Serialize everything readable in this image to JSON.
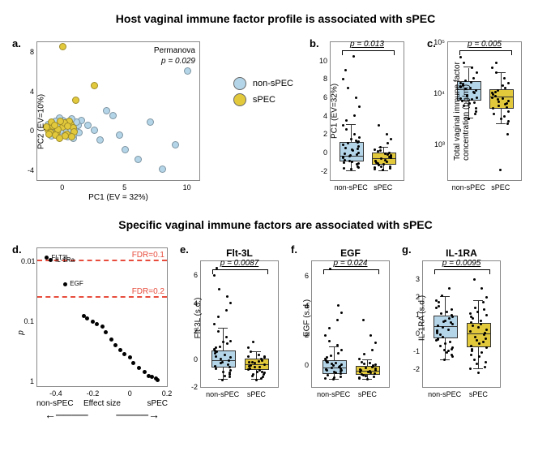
{
  "title1": "Host vaginal immune factor profile is associated with sPEC",
  "title2": "Specific vaginal immune factors are associated with sPEC",
  "colors": {
    "non_spec": "#b4d5e8",
    "spec": "#e2c93c",
    "fdr_line": "#e74c3c",
    "point": "#000000"
  },
  "panel_a": {
    "label": "a.",
    "xlabel": "PC1 (EV = 32%)",
    "ylabel": "PC2 (EV=10%)",
    "permanova": "Permanova",
    "pval": "p = 0.029",
    "xlim": [
      -2,
      11
    ],
    "ylim": [
      -5,
      9
    ],
    "xticks": [
      0,
      5,
      10
    ],
    "yticks": [
      -4,
      0,
      4,
      8
    ],
    "legend": {
      "non": "non-sPEC",
      "spec": "sPEC"
    },
    "points_non": [
      [
        -1,
        0
      ],
      [
        -0.5,
        0.5
      ],
      [
        0,
        1
      ],
      [
        0.5,
        -0.5
      ],
      [
        1,
        0.2
      ],
      [
        -0.8,
        -0.3
      ],
      [
        0.3,
        0.8
      ],
      [
        1.5,
        1
      ],
      [
        -1.2,
        0.6
      ],
      [
        0.8,
        -0.8
      ],
      [
        -0.3,
        1.2
      ],
      [
        0.6,
        0.1
      ],
      [
        -0.9,
        -0.6
      ],
      [
        0.2,
        -0.2
      ],
      [
        1.2,
        0.5
      ],
      [
        -0.4,
        0.3
      ],
      [
        0.9,
        -0.4
      ],
      [
        -0.6,
        0.9
      ],
      [
        0.4,
        -0.7
      ],
      [
        1.1,
        0.8
      ],
      [
        -0.2,
        -0.1
      ],
      [
        0.7,
        1.1
      ],
      [
        -1.1,
        0.2
      ],
      [
        0.1,
        0.6
      ],
      [
        1.3,
        -0.3
      ],
      [
        2,
        0.5
      ],
      [
        3,
        -1
      ],
      [
        4,
        1.5
      ],
      [
        5,
        -2
      ],
      [
        6,
        -3
      ],
      [
        7,
        0.8
      ],
      [
        8,
        -4
      ],
      [
        9,
        -1.5
      ],
      [
        10,
        6
      ],
      [
        3.5,
        2
      ],
      [
        4.5,
        -0.5
      ],
      [
        2.5,
        0
      ]
    ],
    "points_spec": [
      [
        -1.2,
        0
      ],
      [
        -0.8,
        0.4
      ],
      [
        -0.5,
        -0.2
      ],
      [
        0,
        0.3
      ],
      [
        0.3,
        -0.4
      ],
      [
        0.6,
        0.6
      ],
      [
        -0.9,
        0.8
      ],
      [
        0.2,
        -0.6
      ],
      [
        -0.4,
        0.1
      ],
      [
        0.5,
        0.9
      ],
      [
        -1,
        -0.3
      ],
      [
        0.8,
        0.2
      ],
      [
        -0.6,
        -0.5
      ],
      [
        0.1,
        0.7
      ],
      [
        -0.3,
        -0.8
      ],
      [
        0.4,
        0.4
      ],
      [
        -0.7,
        0.5
      ],
      [
        0.9,
        -0.2
      ],
      [
        -0.2,
        0.9
      ],
      [
        0.7,
        -0.7
      ],
      [
        0,
        8.5
      ],
      [
        1,
        3
      ],
      [
        2.5,
        4.5
      ],
      [
        -1.3,
        0.3
      ],
      [
        -1.1,
        -0.4
      ]
    ]
  },
  "panel_b": {
    "label": "b.",
    "ylabel": "PC1 (EV=32%)",
    "pval": "p = 0.013",
    "xlabels": [
      "non-sPEC",
      "sPEC"
    ],
    "ylim": [
      -3,
      12
    ],
    "yticks": [
      -2,
      0,
      2,
      4,
      6,
      8,
      10
    ],
    "boxes": [
      {
        "color": "non_spec",
        "q1": -1,
        "median": -0.5,
        "q3": 1,
        "wlo": -2,
        "whi": 3
      },
      {
        "color": "spec",
        "q1": -1.3,
        "median": -0.8,
        "q3": -0.2,
        "wlo": -2,
        "whi": 0.5
      }
    ],
    "jitter_non": [
      -1.8,
      -1.5,
      -1.2,
      -1,
      -0.8,
      -0.6,
      -0.4,
      -0.2,
      0,
      0.2,
      0.5,
      0.8,
      1,
      1.3,
      1.6,
      2,
      2.5,
      3,
      3.5,
      4,
      5,
      6,
      7,
      8,
      9,
      10.5,
      -1.6,
      -1.3,
      -0.9,
      -0.5,
      -0.1,
      0.3,
      0.7,
      1.1,
      1.5,
      -1.7,
      -1.1,
      -0.3,
      0.4,
      1.2
    ],
    "jitter_spec": [
      -1.9,
      -1.7,
      -1.5,
      -1.3,
      -1.1,
      -0.9,
      -0.7,
      -0.5,
      -0.3,
      -0.1,
      0.1,
      0.3,
      0.6,
      1,
      1.5,
      2,
      3,
      -1.8,
      -1.4,
      -1,
      -0.6,
      -0.2,
      0.2,
      -1.6,
      -1.2,
      -0.8,
      -0.4,
      0,
      -1.5,
      -0.95
    ]
  },
  "panel_c": {
    "label": "c.",
    "ylabel": "Total vaginal immune factor\\nconcentration (pg/ml)",
    "pval": "p = 0.005",
    "xlabels": [
      "non-sPEC",
      "sPEC"
    ],
    "ylim": [
      2.3,
      5
    ],
    "yticks": [
      3,
      4,
      5
    ],
    "yticklabels": [
      "10³",
      "10⁴",
      "10⁵"
    ],
    "log": true,
    "boxes": [
      {
        "color": "non_spec",
        "q1": 3.85,
        "median": 4.05,
        "q3": 4.2,
        "wlo": 3.5,
        "whi": 4.5
      },
      {
        "color": "spec",
        "q1": 3.7,
        "median": 3.9,
        "q3": 4.05,
        "wlo": 3.4,
        "whi": 4.4
      }
    ],
    "jitter_non": [
      3.5,
      3.6,
      3.7,
      3.8,
      3.85,
      3.9,
      3.95,
      4,
      4.05,
      4.1,
      4.15,
      4.2,
      4.25,
      4.3,
      4.4,
      4.5,
      4.6,
      4.7,
      3.75,
      3.88,
      3.92,
      4.02,
      4.08,
      4.12,
      4.18,
      4.22,
      3.65,
      3.82,
      3.96,
      4.14
    ],
    "jitter_spec": [
      2.5,
      3.2,
      3.4,
      3.5,
      3.6,
      3.7,
      3.75,
      3.8,
      3.85,
      3.9,
      3.95,
      4,
      4.05,
      4.1,
      4.2,
      4.3,
      4.4,
      4.5,
      4.6,
      3.55,
      3.65,
      3.78,
      3.88,
      3.92,
      4.02,
      4.15,
      3.45,
      3.72,
      3.83,
      3.97
    ]
  },
  "panel_d": {
    "label": "d.",
    "xlabel": "Effect size",
    "ylabel": "p",
    "xlabels_bottom": {
      "left": "non-sPEC",
      "right": "sPEC"
    },
    "xlim": [
      -0.5,
      0.2
    ],
    "ylim_log": [
      0.006,
      1.2
    ],
    "xticks": [
      -0.4,
      -0.2,
      0,
      0.2
    ],
    "yticks": [
      0.01,
      0.1,
      1
    ],
    "fdr1": {
      "y": 0.01,
      "label": "FDR=0.1"
    },
    "fdr2": {
      "y": 0.04,
      "label": "FDR=0.2"
    },
    "labeled_points": [
      {
        "x": -0.45,
        "y": 0.0087,
        "label": "FLT3L"
      },
      {
        "x": -0.43,
        "y": 0.0095,
        "label": "IL-1Ra"
      },
      {
        "x": -0.35,
        "y": 0.024,
        "label": "EGF"
      }
    ],
    "points": [
      [
        -0.25,
        0.08
      ],
      [
        -0.23,
        0.09
      ],
      [
        -0.2,
        0.1
      ],
      [
        -0.18,
        0.11
      ],
      [
        -0.15,
        0.12
      ],
      [
        -0.13,
        0.15
      ],
      [
        -0.1,
        0.2
      ],
      [
        -0.08,
        0.25
      ],
      [
        -0.05,
        0.3
      ],
      [
        -0.03,
        0.35
      ],
      [
        0,
        0.4
      ],
      [
        0.02,
        0.5
      ],
      [
        0.05,
        0.6
      ],
      [
        0.08,
        0.7
      ],
      [
        0.1,
        0.8
      ],
      [
        0.12,
        0.85
      ],
      [
        0.14,
        0.9
      ],
      [
        0.15,
        0.95
      ]
    ]
  },
  "panel_e": {
    "label": "e.",
    "title": "Flt-3L",
    "ylabel": "Flt-3L (s.d.)",
    "pval": "p = 0.0087",
    "xlabels": [
      "non-sPEC",
      "sPEC"
    ],
    "ylim": [
      -2,
      7
    ],
    "yticks": [
      -2,
      0,
      2,
      4,
      6
    ],
    "boxes": [
      {
        "color": "non_spec",
        "q1": -0.6,
        "median": -0.2,
        "q3": 0.5,
        "wlo": -1.5,
        "whi": 2.2
      },
      {
        "color": "spec",
        "q1": -0.8,
        "median": -0.5,
        "q3": -0.1,
        "wlo": -1.5,
        "whi": 0.5
      }
    ],
    "jitter_non": [
      -1.5,
      -1.3,
      -1.1,
      -0.9,
      -0.7,
      -0.5,
      -0.3,
      -0.1,
      0.1,
      0.3,
      0.5,
      0.7,
      0.9,
      1.1,
      1.3,
      1.6,
      2,
      2.5,
      3,
      3.5,
      4,
      4.5,
      5,
      6,
      6.5,
      -1.2,
      -0.8,
      -0.4,
      0,
      0.4,
      0.8,
      1.2,
      -1,
      -0.6,
      -0.2,
      0.2,
      0.6
    ],
    "jitter_spec": [
      -1.5,
      -1.3,
      -1.1,
      -0.9,
      -0.7,
      -0.5,
      -0.3,
      -0.1,
      0.1,
      0.3,
      0.5,
      0.8,
      1.2,
      -1.4,
      -1,
      -0.6,
      -0.2,
      0.2,
      -1.2,
      -0.8,
      -0.4,
      0,
      -1.1,
      -0.75,
      -0.45,
      -0.15,
      0.15,
      -0.95,
      -0.55,
      -0.25
    ]
  },
  "panel_f": {
    "label": "f.",
    "title": "EGF",
    "ylabel": "EGF (s.d.)",
    "pval": "p = 0.024",
    "xlabels": [
      "non-sPEC",
      "sPEC"
    ],
    "ylim": [
      -1.5,
      7
    ],
    "yticks": [
      0,
      2,
      4,
      6
    ],
    "boxes": [
      {
        "color": "non_spec",
        "q1": -0.6,
        "median": -0.3,
        "q3": 0.2,
        "wlo": -1,
        "whi": 1.2
      },
      {
        "color": "spec",
        "q1": -0.7,
        "median": -0.5,
        "q3": -0.2,
        "wlo": -1,
        "whi": 0.3
      }
    ],
    "jitter_non": [
      -1,
      -0.8,
      -0.6,
      -0.5,
      -0.4,
      -0.3,
      -0.2,
      -0.1,
      0,
      0.1,
      0.2,
      0.4,
      0.6,
      0.8,
      1,
      1.3,
      1.6,
      2,
      2.5,
      3,
      3.5,
      4,
      6.5,
      -0.9,
      -0.7,
      -0.55,
      -0.35,
      -0.15,
      0.05,
      0.3,
      0.5,
      -0.85,
      -0.45,
      -0.25,
      -0.05,
      0.15
    ],
    "jitter_spec": [
      -1,
      -0.8,
      -0.6,
      -0.5,
      -0.4,
      -0.3,
      -0.2,
      -0.1,
      0,
      0.1,
      0.2,
      0.4,
      0.7,
      1,
      1.5,
      2,
      3,
      -0.9,
      -0.7,
      -0.55,
      -0.35,
      -0.15,
      0.05,
      -0.85,
      -0.65,
      -0.45,
      -0.25,
      -0.05,
      -0.75,
      -0.5
    ]
  },
  "panel_g": {
    "label": "g.",
    "title": "IL-1RA",
    "ylabel": "IL-1RA (s.d.)",
    "pval": "p = 0.0095",
    "xlabels": [
      "non-sPEC",
      "sPEC"
    ],
    "ylim": [
      -3,
      4
    ],
    "yticks": [
      -2,
      -1,
      0,
      1,
      2,
      3
    ],
    "boxes": [
      {
        "color": "non_spec",
        "q1": -0.3,
        "median": 0.3,
        "q3": 0.9,
        "wlo": -1.5,
        "whi": 2
      },
      {
        "color": "spec",
        "q1": -0.8,
        "median": -0.1,
        "q3": 0.5,
        "wlo": -2,
        "whi": 1.8
      }
    ],
    "jitter_non": [
      -1.5,
      -1.2,
      -0.9,
      -0.6,
      -0.3,
      0,
      0.3,
      0.6,
      0.9,
      1.2,
      1.5,
      1.8,
      2.1,
      2.5,
      -1.3,
      -1,
      -0.7,
      -0.4,
      -0.1,
      0.2,
      0.5,
      0.8,
      1.1,
      1.4,
      1.7,
      -1.1,
      -0.8,
      -0.5,
      -0.2,
      0.1,
      0.4,
      0.7,
      1,
      1.3,
      -0.95,
      -0.35,
      0.15,
      0.65
    ],
    "jitter_spec": [
      -2.2,
      -1.9,
      -1.6,
      -1.3,
      -1,
      -0.7,
      -0.4,
      -0.1,
      0.2,
      0.5,
      0.8,
      1.1,
      1.4,
      1.7,
      2,
      2.5,
      3,
      -2,
      -1.5,
      -1.1,
      -0.8,
      -0.5,
      -0.2,
      0.1,
      0.4,
      0.7,
      1,
      1.3,
      -1.7,
      -1.2,
      -0.9,
      -0.6,
      -0.3,
      0,
      0.3,
      0.6,
      0.9,
      1.2
    ]
  }
}
